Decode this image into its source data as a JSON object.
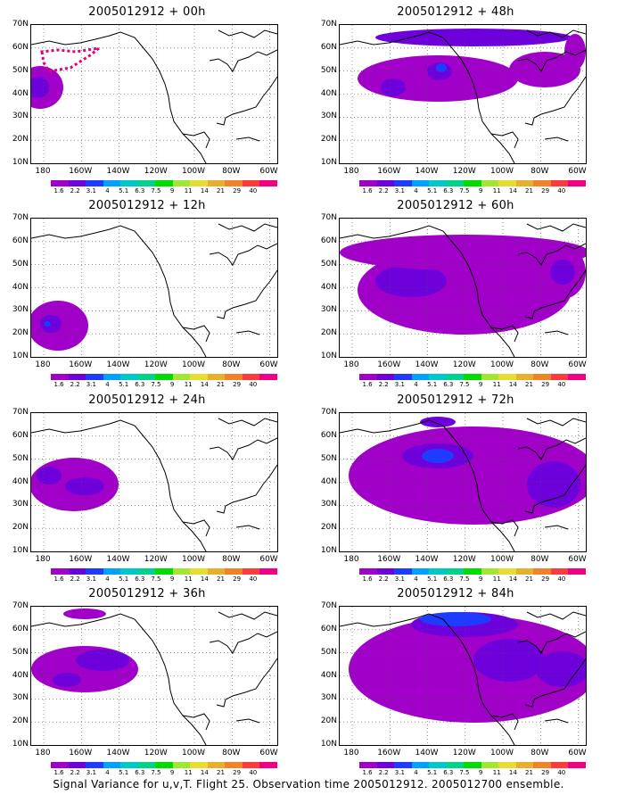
{
  "panels": [
    {
      "title": "2005012912 + 00h"
    },
    {
      "title": "2005012912 + 48h"
    },
    {
      "title": "2005012912 + 12h"
    },
    {
      "title": "2005012912 + 60h"
    },
    {
      "title": "2005012912 + 24h"
    },
    {
      "title": "2005012912 + 72h"
    },
    {
      "title": "2005012912 + 36h"
    },
    {
      "title": "2005012912 + 84h"
    }
  ],
  "y_labels": [
    "70N",
    "60N",
    "50N",
    "40N",
    "30N",
    "20N",
    "10N"
  ],
  "x_labels": [
    "180",
    "160W",
    "140W",
    "120W",
    "100W",
    "80W",
    "60W"
  ],
  "colorbar": {
    "labels": [
      "1.6",
      "2.2",
      "3.1",
      "4",
      "5.1",
      "6.3",
      "7.5",
      "9",
      "11",
      "14",
      "21",
      "29",
      "40"
    ],
    "colors": [
      "#a000c8",
      "#6e00dc",
      "#1e3cff",
      "#00a0ff",
      "#00c8c8",
      "#00d28c",
      "#00dc00",
      "#a0e632",
      "#e6dc32",
      "#e6af2d",
      "#f08228",
      "#fa3c3c",
      "#f00082"
    ]
  },
  "caption": "Signal Variance for u,v,T. Flight 25. Observation time 2005012912. 2005012700 ensemble."
}
